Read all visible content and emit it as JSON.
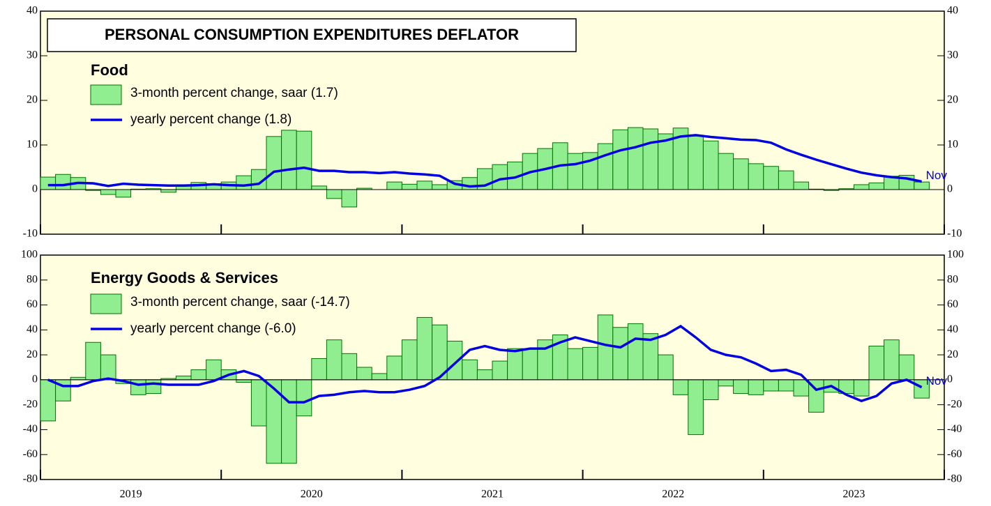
{
  "header": {
    "title": "PERSONAL CONSUMPTION EXPENDITURES DEFLATOR"
  },
  "chart_data": [
    {
      "type": "bar",
      "title": "Food",
      "annotation": "Nov",
      "ylim": [
        -10,
        40
      ],
      "yticks": [
        -10,
        0,
        10,
        20,
        30,
        40
      ],
      "series": [
        {
          "name": "3-month percent change, saar (1.7)",
          "type": "bar",
          "color": "#90ee90",
          "values": [
            2.8,
            3.4,
            2.7,
            -0.2,
            -1.1,
            -1.7,
            0.1,
            0.2,
            -0.6,
            1.1,
            1.6,
            1.3,
            1.7,
            3.1,
            4.5,
            11.9,
            13.3,
            13.1,
            0.8,
            -2.0,
            -3.9,
            0.3,
            0,
            1.7,
            1.2,
            1.9,
            1.1,
            2.0,
            2.7,
            4.7,
            5.6,
            6.2,
            8.1,
            9.2,
            10.5,
            8.1,
            8.3,
            10.3,
            13.4,
            13.9,
            13.6,
            12.5,
            13.8,
            12.0,
            10.9,
            8.1,
            6.9,
            5.8,
            5.2,
            4.2,
            1.7,
            0.1,
            -0.2,
            0.2,
            1.1,
            1.5,
            3.0,
            3.2,
            1.7
          ]
        },
        {
          "name": "yearly percent change (1.8)",
          "type": "line",
          "color": "#0000e0",
          "values": [
            1.0,
            1.0,
            1.5,
            1.4,
            0.8,
            1.3,
            1.1,
            1.0,
            0.9,
            0.9,
            1.0,
            1.2,
            1.0,
            0.9,
            1.3,
            4.0,
            4.5,
            4.9,
            4.2,
            4.2,
            3.9,
            3.9,
            3.7,
            3.9,
            3.6,
            3.4,
            3.1,
            1.3,
            0.7,
            0.9,
            2.3,
            2.7,
            3.9,
            4.6,
            5.4,
            5.7,
            6.5,
            7.7,
            8.8,
            9.5,
            10.5,
            11.0,
            11.9,
            12.2,
            11.8,
            11.5,
            11.2,
            11.1,
            10.5,
            9.0,
            7.8,
            6.7,
            5.7,
            4.7,
            3.8,
            3.2,
            2.8,
            2.5,
            1.8
          ]
        }
      ]
    },
    {
      "type": "bar",
      "title": "Energy Goods & Services",
      "annotation": "Nov",
      "ylim": [
        -80,
        100
      ],
      "yticks": [
        -80,
        -60,
        -40,
        -20,
        0,
        20,
        40,
        60,
        80,
        100
      ],
      "year_labels": [
        "2019",
        "2020",
        "2021",
        "2022",
        "2023"
      ],
      "series": [
        {
          "name": "3-month percent change, saar (-14.7)",
          "type": "bar",
          "color": "#90ee90",
          "values": [
            -33,
            -17,
            2,
            30,
            20,
            -3,
            -12,
            -11,
            1,
            3,
            8,
            16,
            8,
            -2,
            -37,
            -67,
            -67,
            -29,
            17,
            32,
            21,
            10,
            5,
            19,
            32,
            50,
            44,
            31,
            16,
            8,
            15,
            25,
            25,
            32,
            36,
            25,
            26,
            52,
            42,
            45,
            37,
            20,
            -12,
            -44,
            -16,
            -5,
            -11,
            -12,
            -9,
            -9,
            -13,
            -26,
            -10,
            -11,
            -13,
            27,
            32,
            20,
            -14.7
          ]
        },
        {
          "name": "yearly percent change (-6.0)",
          "type": "line",
          "color": "#0000e0",
          "values": [
            0,
            -5,
            -5,
            -1,
            1,
            -1,
            -4,
            -3,
            -4,
            -4,
            -4,
            -1,
            4,
            7,
            3,
            -7,
            -18,
            -18,
            -13,
            -12,
            -10,
            -9,
            -10,
            -10,
            -8,
            -5,
            2,
            13,
            24,
            27,
            24,
            23,
            25,
            25,
            30,
            34,
            31,
            28,
            26,
            33,
            32,
            36,
            43,
            34,
            24,
            20,
            18,
            13,
            7,
            8,
            4,
            -8,
            -5,
            -12,
            -17,
            -13,
            -3,
            0,
            -6.0
          ]
        }
      ]
    }
  ]
}
